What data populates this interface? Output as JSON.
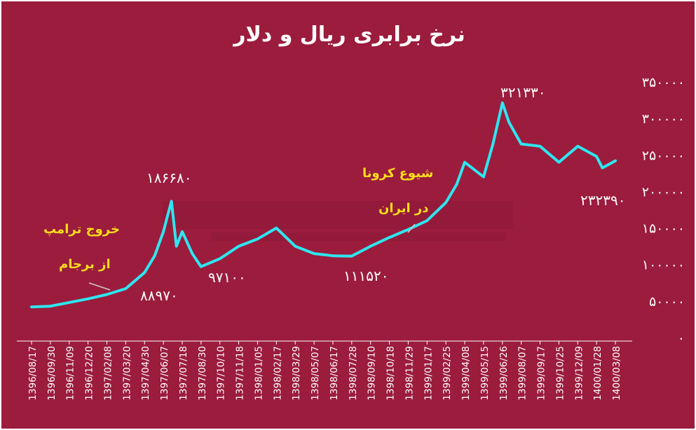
{
  "title": "نرخ برابری ریال و دلار",
  "colors": {
    "background": "#9b1c3d",
    "line": "#2ee6f0",
    "annotation": "#ffde1a",
    "text": "#ffffff"
  },
  "annotations": {
    "trump_exit_1": "خروج ترامپ",
    "trump_exit_2": "از برجام",
    "corona_1": "شیوع کرونا",
    "corona_2": "در ایران"
  },
  "value_labels": {
    "v88970": "۸۸۹۷۰",
    "v186680": "۱۸۶۶۸۰",
    "v97100": "۹۷۱۰۰",
    "v111520": "۱۱۱۵۲۰",
    "v321330": "۳۲۱۳۳۰",
    "v232390": "۲۳۲۳۹۰"
  },
  "chart_data": {
    "type": "line",
    "title": "نرخ برابری ریال و دلار",
    "xlabel": "",
    "ylabel": "",
    "ylim": [
      0,
      350000
    ],
    "ytick_labels": [
      "۰",
      "۵۰۰۰۰",
      "۱۰۰۰۰۰",
      "۱۵۰۰۰۰",
      "۲۰۰۰۰۰",
      "۲۵۰۰۰۰",
      "۳۰۰۰۰۰",
      "۳۵۰۰۰۰"
    ],
    "ytick_values": [
      0,
      50000,
      100000,
      150000,
      200000,
      250000,
      300000,
      350000
    ],
    "xtick_labels": [
      "1396/08/17",
      "1396/09/30",
      "1396/11/09",
      "1396/12/20",
      "1397/02/08",
      "1397/03/20",
      "1397/04/30",
      "1397/06/07",
      "1397/07/18",
      "1397/08/30",
      "1397/10/10",
      "1397/11/18",
      "1398/01/05",
      "1398/02/17",
      "1398/03/29",
      "1398/05/07",
      "1398/06/17",
      "1398/07/28",
      "1398/09/10",
      "1398/10/18",
      "1398/11/29",
      "1399/01/17",
      "1399/02/25",
      "1399/04/08",
      "1399/05/15",
      "1399/06/26",
      "1399/08/07",
      "1399/09/17",
      "1399/10/25",
      "1399/12/09",
      "1400/01/28",
      "1400/03/08"
    ],
    "y_axis_side": "right",
    "grid": false,
    "series": [
      {
        "x": [
          "1396/08/17",
          "1396/09/30",
          "1396/11/09",
          "1396/12/20",
          "1397/02/08",
          "1397/03/20",
          "1397/04/30",
          "1397/05/20",
          "1397/06/07",
          "1397/06/25",
          "1397/07/05",
          "1397/07/18",
          "1397/08/10",
          "1397/08/30",
          "1397/10/10",
          "1397/11/18",
          "1398/01/05",
          "1398/02/17",
          "1398/03/29",
          "1398/05/07",
          "1398/06/17",
          "1398/07/28",
          "1398/09/10",
          "1398/10/18",
          "1398/11/29",
          "1399/01/17",
          "1399/02/25",
          "1399/03/20",
          "1399/04/08",
          "1399/05/15",
          "1399/06/05",
          "1399/06/26",
          "1399/07/10",
          "1399/08/07",
          "1399/09/17",
          "1399/10/25",
          "1399/12/09",
          "1400/01/28",
          "1400/02/10",
          "1400/03/08"
        ],
        "values": [
          42000,
          43000,
          48000,
          53000,
          59000,
          67000,
          88970,
          112000,
          145000,
          186680,
          125000,
          145000,
          115000,
          97100,
          108000,
          125000,
          135000,
          150000,
          125000,
          115000,
          112000,
          111520,
          125000,
          137000,
          148000,
          160000,
          185000,
          210000,
          240000,
          220000,
          265000,
          321330,
          295000,
          265000,
          262000,
          240000,
          262000,
          248000,
          232390,
          242000
        ]
      }
    ]
  }
}
